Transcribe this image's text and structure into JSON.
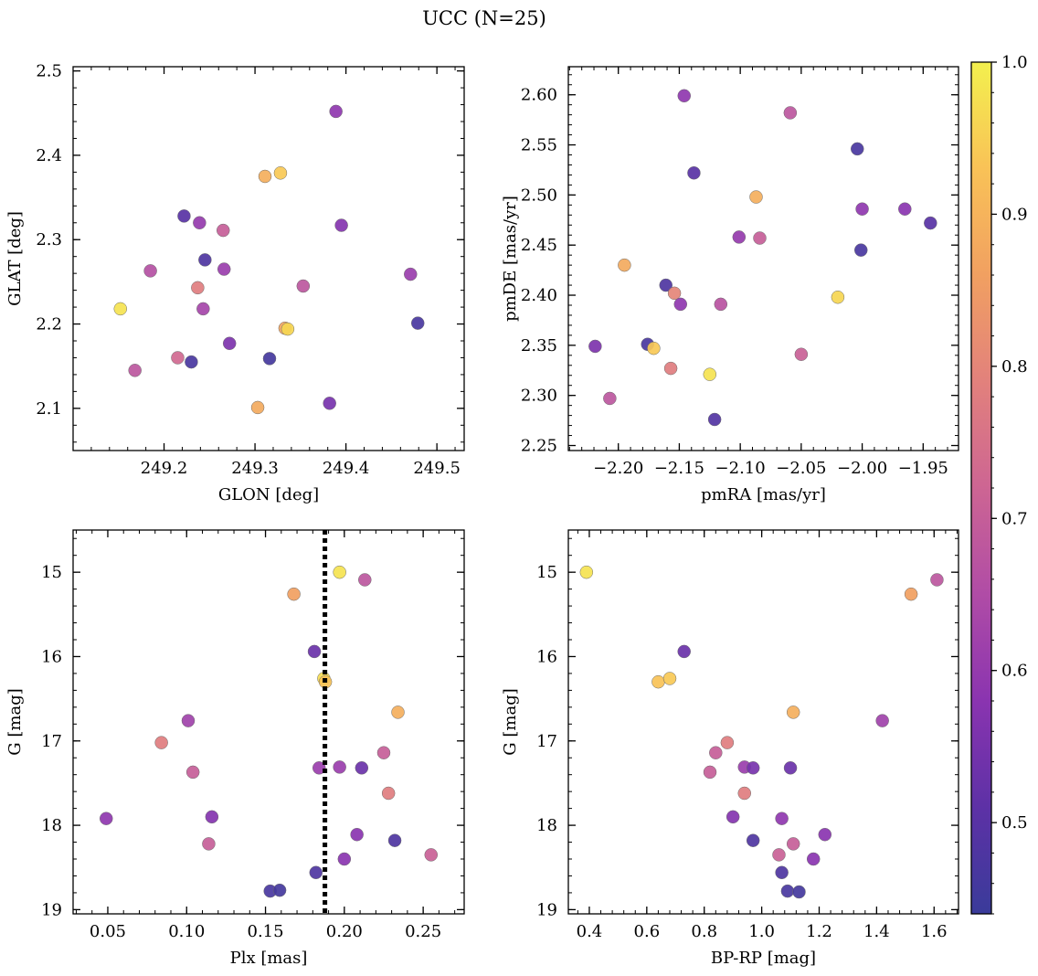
{
  "title": "UCC (N=25)",
  "colorbar": {
    "range": [
      0.44,
      1.0
    ],
    "ticks": [
      0.5,
      0.6,
      0.7,
      0.8,
      0.9,
      1.0
    ],
    "tick_labels": [
      "0.5",
      "0.6",
      "0.7",
      "0.8",
      "0.9",
      "1.0"
    ],
    "colormap": "plasma",
    "stops": [
      "#3a3b9a",
      "#5d31a6",
      "#8a34b0",
      "#b04ca6",
      "#cd6593",
      "#e2817c",
      "#f1a061",
      "#f9c257",
      "#f3f04e"
    ]
  },
  "chart_data": [
    {
      "type": "scatter",
      "id": "glon-glat",
      "xlabel": "GLON [deg]",
      "ylabel": "GLAT [deg]",
      "xlim": [
        249.1,
        249.53
      ],
      "ylim": [
        2.05,
        2.505
      ],
      "xticks": [
        249.2,
        249.3,
        249.4,
        249.5
      ],
      "xtick_labels": [
        "249.2",
        "249.3",
        "249.4",
        "249.5"
      ],
      "yticks": [
        2.1,
        2.2,
        2.3,
        2.4,
        2.5
      ],
      "ytick_labels": [
        "2.1",
        "2.2",
        "2.3",
        "2.4",
        "2.5"
      ],
      "points": [
        {
          "x": 249.152,
          "y": 2.218,
          "c": 0.98
        },
        {
          "x": 249.168,
          "y": 2.145,
          "c": 0.68
        },
        {
          "x": 249.185,
          "y": 2.263,
          "c": 0.66
        },
        {
          "x": 249.215,
          "y": 2.16,
          "c": 0.73
        },
        {
          "x": 249.222,
          "y": 2.328,
          "c": 0.5
        },
        {
          "x": 249.23,
          "y": 2.155,
          "c": 0.47
        },
        {
          "x": 249.237,
          "y": 2.243,
          "c": 0.78
        },
        {
          "x": 249.239,
          "y": 2.32,
          "c": 0.6
        },
        {
          "x": 249.243,
          "y": 2.218,
          "c": 0.63
        },
        {
          "x": 249.245,
          "y": 2.276,
          "c": 0.48
        },
        {
          "x": 249.265,
          "y": 2.311,
          "c": 0.7
        },
        {
          "x": 249.266,
          "y": 2.265,
          "c": 0.61
        },
        {
          "x": 249.272,
          "y": 2.177,
          "c": 0.56
        },
        {
          "x": 249.303,
          "y": 2.101,
          "c": 0.88
        },
        {
          "x": 249.311,
          "y": 2.375,
          "c": 0.89
        },
        {
          "x": 249.316,
          "y": 2.159,
          "c": 0.46
        },
        {
          "x": 249.328,
          "y": 2.379,
          "c": 0.94
        },
        {
          "x": 249.333,
          "y": 2.195,
          "c": 0.87
        },
        {
          "x": 249.336,
          "y": 2.194,
          "c": 0.96
        },
        {
          "x": 249.353,
          "y": 2.245,
          "c": 0.68
        },
        {
          "x": 249.382,
          "y": 2.106,
          "c": 0.55
        },
        {
          "x": 249.389,
          "y": 2.452,
          "c": 0.59
        },
        {
          "x": 249.395,
          "y": 2.317,
          "c": 0.57
        },
        {
          "x": 249.471,
          "y": 2.259,
          "c": 0.61
        },
        {
          "x": 249.479,
          "y": 2.201,
          "c": 0.47
        }
      ]
    },
    {
      "type": "scatter",
      "id": "pmra-pmde",
      "xlabel": "pmRA [mas/yr]",
      "ylabel": "pmDE [mas/yr]",
      "xlim": [
        -2.241,
        -1.921
      ],
      "ylim": [
        2.245,
        2.628
      ],
      "xticks": [
        -2.2,
        -2.15,
        -2.1,
        -2.05,
        -2.0,
        -1.95
      ],
      "xtick_labels": [
        "−2.20",
        "−2.15",
        "−2.10",
        "−2.05",
        "−2.00",
        "−1.95"
      ],
      "yticks": [
        2.25,
        2.3,
        2.35,
        2.4,
        2.45,
        2.5,
        2.55,
        2.6
      ],
      "ytick_labels": [
        "2.25",
        "2.30",
        "2.35",
        "2.40",
        "2.45",
        "2.50",
        "2.55",
        "2.60"
      ],
      "points": [
        {
          "x": -2.219,
          "y": 2.349,
          "c": 0.56
        },
        {
          "x": -2.207,
          "y": 2.297,
          "c": 0.68
        },
        {
          "x": -2.195,
          "y": 2.43,
          "c": 0.88
        },
        {
          "x": -2.176,
          "y": 2.351,
          "c": 0.47
        },
        {
          "x": -2.171,
          "y": 2.347,
          "c": 0.94
        },
        {
          "x": -2.161,
          "y": 2.41,
          "c": 0.48
        },
        {
          "x": -2.157,
          "y": 2.327,
          "c": 0.78
        },
        {
          "x": -2.154,
          "y": 2.402,
          "c": 0.8
        },
        {
          "x": -2.149,
          "y": 2.391,
          "c": 0.59
        },
        {
          "x": -2.146,
          "y": 2.599,
          "c": 0.59
        },
        {
          "x": -2.138,
          "y": 2.522,
          "c": 0.5
        },
        {
          "x": -2.125,
          "y": 2.321,
          "c": 0.98
        },
        {
          "x": -2.121,
          "y": 2.276,
          "c": 0.49
        },
        {
          "x": -2.116,
          "y": 2.391,
          "c": 0.67
        },
        {
          "x": -2.101,
          "y": 2.458,
          "c": 0.6
        },
        {
          "x": -2.087,
          "y": 2.498,
          "c": 0.89
        },
        {
          "x": -2.084,
          "y": 2.457,
          "c": 0.7
        },
        {
          "x": -2.059,
          "y": 2.582,
          "c": 0.68
        },
        {
          "x": -2.05,
          "y": 2.341,
          "c": 0.71
        },
        {
          "x": -2.02,
          "y": 2.398,
          "c": 0.96
        },
        {
          "x": -2.004,
          "y": 2.546,
          "c": 0.47
        },
        {
          "x": -2.001,
          "y": 2.445,
          "c": 0.47
        },
        {
          "x": -2.0,
          "y": 2.486,
          "c": 0.59
        },
        {
          "x": -1.965,
          "y": 2.486,
          "c": 0.58
        },
        {
          "x": -1.944,
          "y": 2.472,
          "c": 0.5
        }
      ]
    },
    {
      "type": "scatter",
      "id": "plx-g",
      "xlabel": "Plx [mas]",
      "ylabel": "G [mag]",
      "xlim": [
        0.028,
        0.276
      ],
      "ylim": [
        19.05,
        14.5
      ],
      "y_inverted": true,
      "xticks": [
        0.05,
        0.1,
        0.15,
        0.2,
        0.25
      ],
      "xtick_labels": [
        "0.05",
        "0.10",
        "0.15",
        "0.20",
        "0.25"
      ],
      "yticks": [
        15,
        16,
        17,
        18,
        19
      ],
      "ytick_labels": [
        "15",
        "16",
        "17",
        "18",
        "19"
      ],
      "vline": {
        "x": 0.1877,
        "style": "dotted"
      },
      "points": [
        {
          "x": 0.049,
          "y": 17.92,
          "c": 0.59
        },
        {
          "x": 0.084,
          "y": 17.02,
          "c": 0.78
        },
        {
          "x": 0.101,
          "y": 16.76,
          "c": 0.62
        },
        {
          "x": 0.104,
          "y": 17.37,
          "c": 0.7
        },
        {
          "x": 0.114,
          "y": 18.22,
          "c": 0.7
        },
        {
          "x": 0.116,
          "y": 17.9,
          "c": 0.57
        },
        {
          "x": 0.153,
          "y": 18.78,
          "c": 0.47
        },
        {
          "x": 0.159,
          "y": 18.77,
          "c": 0.46
        },
        {
          "x": 0.168,
          "y": 15.26,
          "c": 0.86
        },
        {
          "x": 0.181,
          "y": 15.94,
          "c": 0.53
        },
        {
          "x": 0.182,
          "y": 18.56,
          "c": 0.48
        },
        {
          "x": 0.184,
          "y": 17.32,
          "c": 0.61
        },
        {
          "x": 0.187,
          "y": 16.26,
          "c": 0.97
        },
        {
          "x": 0.188,
          "y": 16.3,
          "c": 0.93
        },
        {
          "x": 0.197,
          "y": 15.0,
          "c": 0.98
        },
        {
          "x": 0.197,
          "y": 17.31,
          "c": 0.61
        },
        {
          "x": 0.2,
          "y": 18.4,
          "c": 0.58
        },
        {
          "x": 0.208,
          "y": 18.11,
          "c": 0.58
        },
        {
          "x": 0.211,
          "y": 17.32,
          "c": 0.53
        },
        {
          "x": 0.213,
          "y": 15.09,
          "c": 0.68
        },
        {
          "x": 0.225,
          "y": 17.14,
          "c": 0.7
        },
        {
          "x": 0.228,
          "y": 17.62,
          "c": 0.78
        },
        {
          "x": 0.232,
          "y": 18.18,
          "c": 0.48
        },
        {
          "x": 0.234,
          "y": 16.66,
          "c": 0.89
        },
        {
          "x": 0.255,
          "y": 18.35,
          "c": 0.71
        }
      ]
    },
    {
      "type": "scatter",
      "id": "bprp-g",
      "xlabel": "BP-RP [mag]",
      "ylabel": "G [mag]",
      "xlim": [
        0.327,
        1.685
      ],
      "ylim": [
        19.05,
        14.5
      ],
      "y_inverted": true,
      "xticks": [
        0.4,
        0.6,
        0.8,
        1.0,
        1.2,
        1.4,
        1.6
      ],
      "xtick_labels": [
        "0.4",
        "0.6",
        "0.8",
        "1.0",
        "1.2",
        "1.4",
        "1.6"
      ],
      "yticks": [
        15,
        16,
        17,
        18,
        19
      ],
      "ytick_labels": [
        "15",
        "16",
        "17",
        "18",
        "19"
      ],
      "points": [
        {
          "x": 0.39,
          "y": 15.0,
          "c": 0.98
        },
        {
          "x": 0.64,
          "y": 16.3,
          "c": 0.93
        },
        {
          "x": 0.68,
          "y": 16.26,
          "c": 0.94
        },
        {
          "x": 0.73,
          "y": 15.94,
          "c": 0.53
        },
        {
          "x": 0.82,
          "y": 17.37,
          "c": 0.7
        },
        {
          "x": 0.84,
          "y": 17.14,
          "c": 0.7
        },
        {
          "x": 0.88,
          "y": 17.02,
          "c": 0.78
        },
        {
          "x": 0.9,
          "y": 17.9,
          "c": 0.57
        },
        {
          "x": 0.94,
          "y": 17.31,
          "c": 0.61
        },
        {
          "x": 0.94,
          "y": 17.62,
          "c": 0.78
        },
        {
          "x": 0.97,
          "y": 17.32,
          "c": 0.55
        },
        {
          "x": 0.97,
          "y": 18.18,
          "c": 0.48
        },
        {
          "x": 1.06,
          "y": 18.35,
          "c": 0.71
        },
        {
          "x": 1.07,
          "y": 17.92,
          "c": 0.59
        },
        {
          "x": 1.07,
          "y": 18.56,
          "c": 0.48
        },
        {
          "x": 1.09,
          "y": 18.78,
          "c": 0.47
        },
        {
          "x": 1.1,
          "y": 17.32,
          "c": 0.53
        },
        {
          "x": 1.11,
          "y": 18.22,
          "c": 0.7
        },
        {
          "x": 1.11,
          "y": 16.66,
          "c": 0.89
        },
        {
          "x": 1.13,
          "y": 18.79,
          "c": 0.46
        },
        {
          "x": 1.18,
          "y": 18.4,
          "c": 0.58
        },
        {
          "x": 1.22,
          "y": 18.11,
          "c": 0.58
        },
        {
          "x": 1.42,
          "y": 16.76,
          "c": 0.62
        },
        {
          "x": 1.52,
          "y": 15.26,
          "c": 0.86
        },
        {
          "x": 1.61,
          "y": 15.09,
          "c": 0.68
        }
      ]
    }
  ]
}
